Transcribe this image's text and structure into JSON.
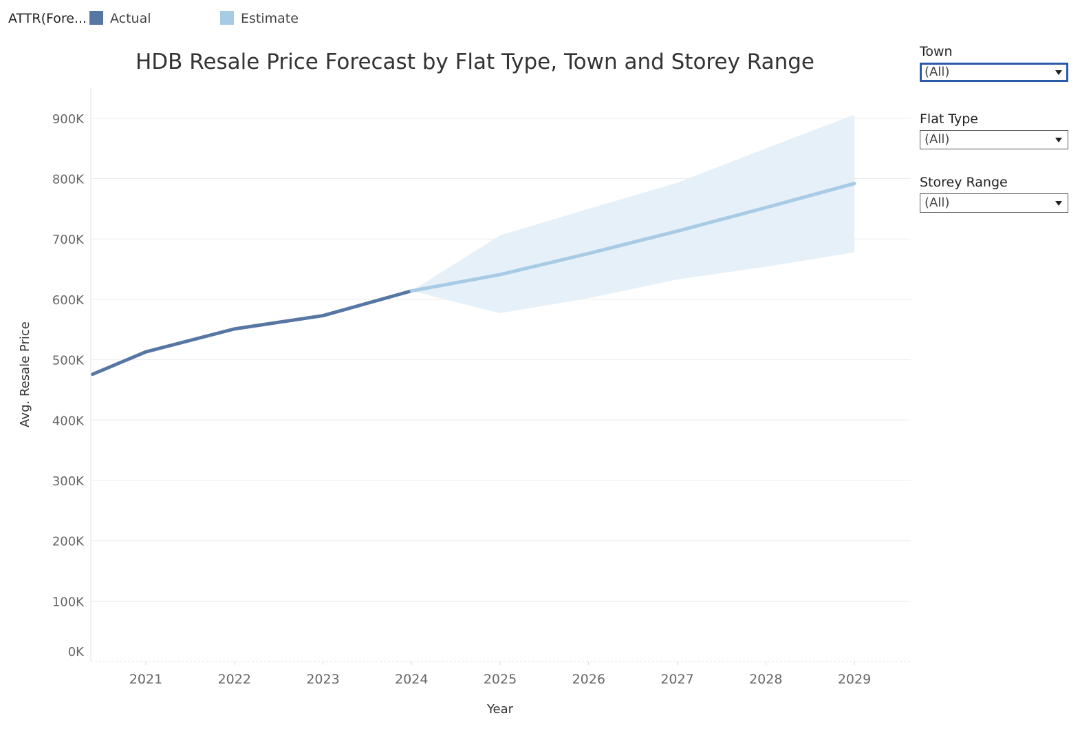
{
  "legend": {
    "title": "ATTR(Fore...",
    "items": [
      {
        "label": "Actual",
        "color": "#5677a4"
      },
      {
        "label": "Estimate",
        "color": "#a8cbe5"
      }
    ]
  },
  "filters": [
    {
      "label": "Town",
      "value": "(All)",
      "active": true
    },
    {
      "label": "Flat Type",
      "value": "(All)",
      "active": false
    },
    {
      "label": "Storey Range",
      "value": "(All)",
      "active": false
    }
  ],
  "colors": {
    "actual": "#5677a4",
    "estimate": "#a8cbe5",
    "band": "#e5f0f8",
    "gridline": "#ececec",
    "filter_focus": "#2a5aa8"
  },
  "chart_data": {
    "type": "line",
    "title": "HDB Resale Price Forecast by Flat Type, Town and Storey Range",
    "xlabel": "Year",
    "ylabel": "Avg. Resale Price",
    "ylim": [
      0,
      950000
    ],
    "xlim": [
      2020.4,
      2029.6
    ],
    "x_ticks": [
      2021,
      2022,
      2023,
      2024,
      2025,
      2026,
      2027,
      2028,
      2029
    ],
    "y_ticks": [
      {
        "value": 0,
        "label": "0K"
      },
      {
        "value": 100000,
        "label": "100K"
      },
      {
        "value": 200000,
        "label": "200K"
      },
      {
        "value": 300000,
        "label": "300K"
      },
      {
        "value": 400000,
        "label": "400K"
      },
      {
        "value": 500000,
        "label": "500K"
      },
      {
        "value": 600000,
        "label": "600K"
      },
      {
        "value": 700000,
        "label": "700K"
      },
      {
        "value": 800000,
        "label": "800K"
      },
      {
        "value": 900000,
        "label": "900K"
      }
    ],
    "grid": true,
    "legend_position": "top-left",
    "series": [
      {
        "name": "Actual",
        "x": [
          2020.4,
          2021,
          2022,
          2023,
          2024
        ],
        "values": [
          476000,
          513000,
          551000,
          573000,
          614000
        ]
      },
      {
        "name": "Estimate",
        "x": [
          2024,
          2025,
          2026,
          2027,
          2028,
          2029
        ],
        "values": [
          614000,
          641000,
          676000,
          713000,
          752000,
          792000
        ]
      }
    ],
    "prediction_interval": {
      "x": [
        2024,
        2025,
        2026,
        2027,
        2028,
        2029
      ],
      "upper": [
        614000,
        706000,
        750000,
        793000,
        850000,
        906000
      ],
      "lower": [
        614000,
        577000,
        602000,
        633000,
        654000,
        678000
      ]
    }
  }
}
